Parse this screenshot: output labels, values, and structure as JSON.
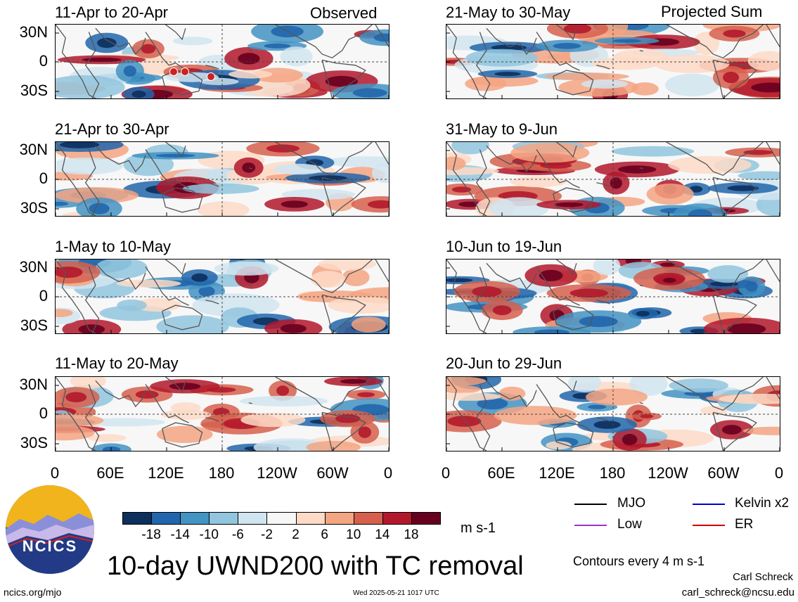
{
  "panels_left_label": "Observed",
  "panels_right_label": "Projected Sum",
  "panels": [
    {
      "title": "11-Apr to 20-Apr",
      "column": "left",
      "row": 0
    },
    {
      "title": "21-Apr to 30-Apr",
      "column": "left",
      "row": 1
    },
    {
      "title": "1-May to 10-May",
      "column": "left",
      "row": 2
    },
    {
      "title": "11-May to 20-May",
      "column": "left",
      "row": 3
    },
    {
      "title": "21-May to 30-May",
      "column": "right",
      "row": 0
    },
    {
      "title": "31-May to 9-Jun",
      "column": "right",
      "row": 1
    },
    {
      "title": "10-Jun to 19-Jun",
      "column": "right",
      "row": 2
    },
    {
      "title": "20-Jun to 29-Jun",
      "column": "right",
      "row": 3
    }
  ],
  "y_tick_labels": [
    "30N",
    "0",
    "30S"
  ],
  "x_tick_labels": [
    "0",
    "60E",
    "120E",
    "180",
    "120W",
    "60W",
    "0"
  ],
  "colorbar": {
    "labels": [
      "-18",
      "-14",
      "-10",
      "-6",
      "-2",
      "2",
      "6",
      "10",
      "14",
      "18"
    ],
    "colors": [
      "#0c2f5c",
      "#2166ac",
      "#4393c3",
      "#92c5de",
      "#d1e5f0",
      "#f7f7f7",
      "#fddbc7",
      "#f4a582",
      "#d6604d",
      "#b2182b",
      "#67001f"
    ],
    "units": "m s-1"
  },
  "legend": {
    "items": [
      {
        "label": "MJO",
        "color": "#000000"
      },
      {
        "label": "Kelvin x2",
        "color": "#0000cc"
      },
      {
        "label": "Low",
        "color": "#9933cc"
      },
      {
        "label": "ER",
        "color": "#cc0000"
      }
    ],
    "contours_note": "Contours every 4 m s-1"
  },
  "logo_text": "NCICS",
  "main_title": "10-day UWND200 with TC removal",
  "footer": {
    "left": "ncics.org/mjo",
    "center": "Wed 2025-05-21 1017 UTC",
    "author": "Carl Schreck",
    "email": "carl_schreck@ncsu.edu"
  },
  "chart_data": {
    "type": "heatmap",
    "variable": "10-day UWND200 with TC removal",
    "units": "m s-1",
    "x_ticks": [
      "0",
      "60E",
      "120E",
      "180",
      "120W",
      "60W",
      "0"
    ],
    "y_ticks": [
      "30N",
      "0",
      "30S"
    ],
    "levels": [
      -18,
      -14,
      -10,
      -6,
      -2,
      2,
      6,
      10,
      14,
      18
    ],
    "panel_titles": [
      "11-Apr to 20-Apr",
      "21-Apr to 30-Apr",
      "1-May to 10-May",
      "11-May to 20-May",
      "21-May to 30-May",
      "31-May to 9-Jun",
      "10-Jun to 19-Jun",
      "20-Jun to 29-Jun"
    ]
  }
}
